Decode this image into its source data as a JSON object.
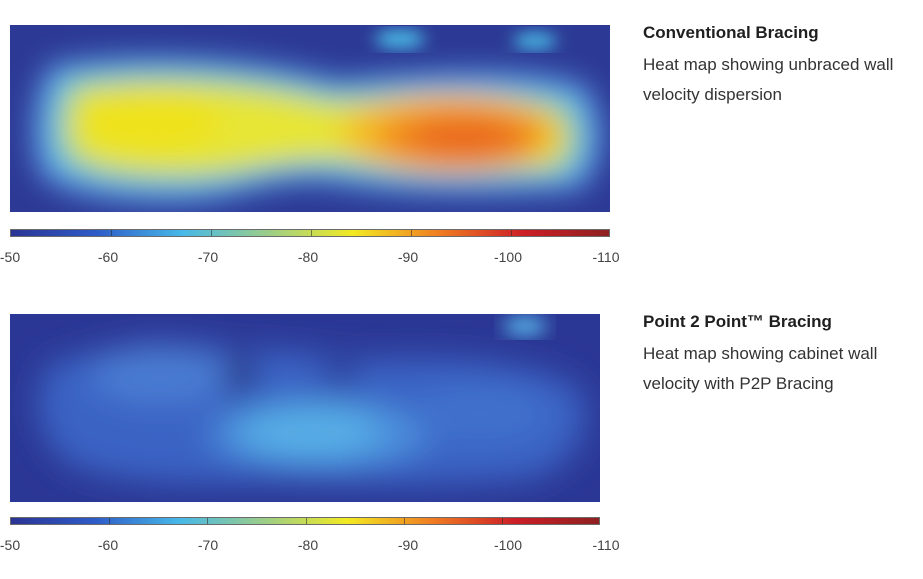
{
  "chart_data": [
    {
      "type": "heatmap",
      "title": "Conventional Bracing",
      "subtitle": "Heat map showing unbraced wall velocity dispersion",
      "colorbar": {
        "ticks": [
          "-50",
          "-60",
          "-70",
          "-80",
          "-90",
          "-100",
          "-110"
        ],
        "colors": [
          "#2b3494",
          "#2e5bc7",
          "#47b8e8",
          "#9acd8a",
          "#f2ea22",
          "#f07e22",
          "#cc1e26",
          "#8e2020"
        ]
      }
    },
    {
      "type": "heatmap",
      "title": "Point 2 Point™ Bracing",
      "subtitle": "Heat map showing cabinet wall velocity with P2P Bracing",
      "colorbar": {
        "ticks": [
          "-50",
          "-60",
          "-70",
          "-80",
          "-90",
          "-100",
          "-110"
        ],
        "colors": [
          "#2b3494",
          "#2e5bc7",
          "#47b8e8",
          "#9acd8a",
          "#f2ea22",
          "#f07e22",
          "#cc1e26",
          "#8e2020"
        ]
      }
    }
  ]
}
